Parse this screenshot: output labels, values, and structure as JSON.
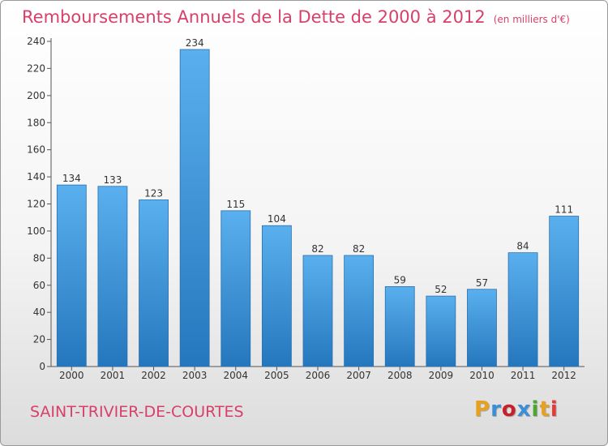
{
  "header": {
    "title": "Remboursements Annuels de la Dette de 2000 à 2012",
    "subtitle": "(en milliers d'€)"
  },
  "footer": {
    "commune": "SAINT-TRIVIER-DE-COURTES",
    "logo_text": "Proxiti",
    "logo_colors": [
      "#e8a020",
      "#3a8fd8",
      "#c8202a",
      "#3a8fd8",
      "#4aa830",
      "#e8a020",
      "#e63a3a"
    ]
  },
  "chart_data": {
    "type": "bar",
    "categories": [
      "2000",
      "2001",
      "2002",
      "2003",
      "2004",
      "2005",
      "2006",
      "2007",
      "2008",
      "2009",
      "2010",
      "2011",
      "2012"
    ],
    "values": [
      134,
      133,
      123,
      234,
      115,
      104,
      82,
      82,
      59,
      52,
      57,
      84,
      111
    ],
    "title": "Remboursements Annuels de la Dette de 2000 à 2012",
    "subtitle": "(en milliers d'€)",
    "xlabel": "",
    "ylabel": "",
    "ylim": [
      0,
      240
    ],
    "yticks": [
      0,
      20,
      40,
      60,
      80,
      100,
      120,
      140,
      160,
      180,
      200,
      220,
      240
    ],
    "grid": false,
    "bar_color": "#3b93dc",
    "bar_color_light": "#5ab0ee",
    "bar_color_dark": "#2577bd",
    "text_color": "#d8406a"
  }
}
